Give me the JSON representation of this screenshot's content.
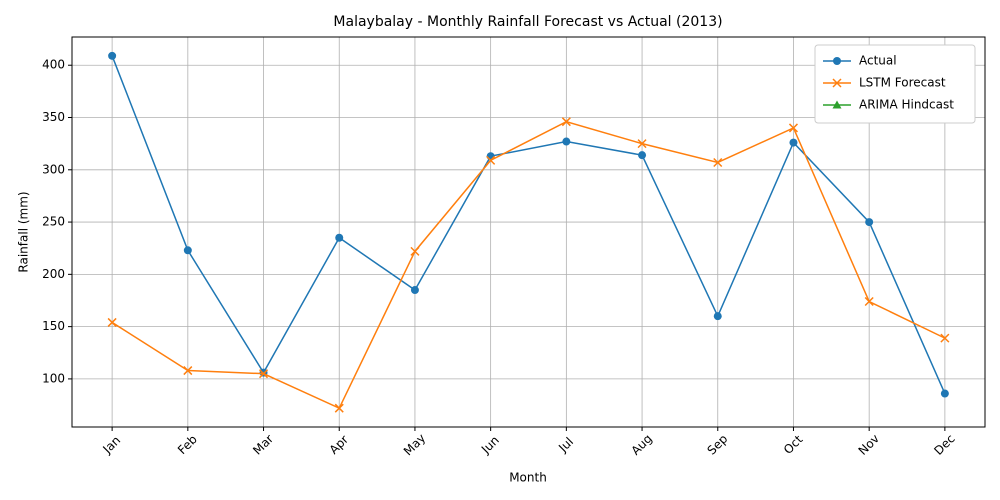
{
  "chart_data": {
    "type": "line",
    "title": "Malaybalay - Monthly Rainfall Forecast vs Actual (2013)",
    "x_label": "Month",
    "y_label": "Rainfall (mm)",
    "categories": [
      "Jan",
      "Feb",
      "Mar",
      "Apr",
      "May",
      "Jun",
      "Jul",
      "Aug",
      "Sep",
      "Oct",
      "Nov",
      "Dec"
    ],
    "series": [
      {
        "name": "Actual",
        "color": "#1f77b4",
        "marker": "circle",
        "values": [
          409,
          223,
          106,
          235,
          185,
          313,
          327,
          314,
          160,
          326,
          250,
          86
        ]
      },
      {
        "name": "LSTM Forecast",
        "color": "#ff7f0e",
        "marker": "x",
        "values": [
          154,
          108,
          105,
          72,
          222,
          309,
          346,
          325,
          307,
          340,
          174,
          139
        ]
      },
      {
        "name": "ARIMA Hindcast",
        "color": "#2ca02c",
        "marker": "triangle",
        "values": [
          null,
          null,
          null,
          null,
          null,
          null,
          null,
          null,
          null,
          null,
          null,
          null
        ]
      }
    ],
    "ylim": [
      54,
      427
    ],
    "yticks": [
      100,
      150,
      200,
      250,
      300,
      350,
      400
    ],
    "grid": true,
    "legend": "upper right"
  }
}
